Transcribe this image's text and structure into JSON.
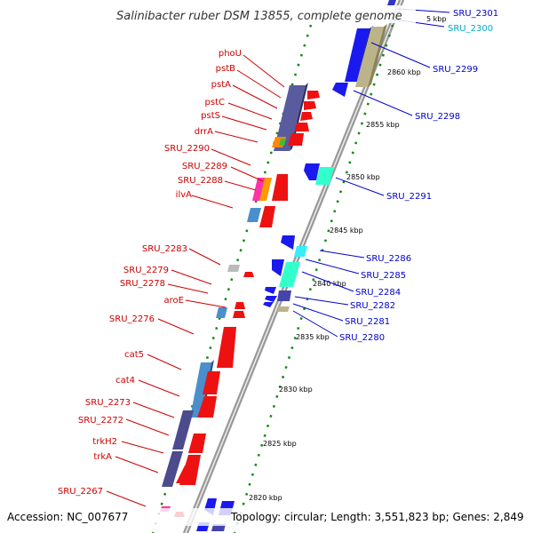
{
  "title": "Salinibacter ruber DSM 13855, complete genome",
  "footer": {
    "accession": "Accession: NC_007677",
    "topology": "Topology: circular; Length: 3,551,823 bp; Genes: 2,849"
  },
  "colors": {
    "backbone": "#888888",
    "forward_gene_label": "#cc0000",
    "reverse_gene_label": "#0000cc",
    "rna_label": "#00aacc",
    "tick_marks": "#008800"
  },
  "ticks": [
    "5 kbp",
    "2860 kbp",
    "2855 kbp",
    "2850 kbp",
    "2845 kbp",
    "2840 kbp",
    "2835 kbp",
    "2830 kbp",
    "2825 kbp",
    "2820 kbp"
  ],
  "forward_genes": [
    "phoU",
    "pstB",
    "pstA",
    "pstC",
    "pstS",
    "drrA",
    "SRU_2290",
    "SRU_2289",
    "SRU_2288",
    "ilvA",
    "SRU_2283",
    "SRU_2279",
    "SRU_2278",
    "aroE",
    "SRU_2276",
    "cat5",
    "cat4",
    "SRU_2273",
    "SRU_2272",
    "trkH2",
    "trkA",
    "SRU_2267"
  ],
  "reverse_genes": [
    "SRU_2301",
    "SRU_2300",
    "SRU_2299",
    "SRU_2298",
    "SRU_2291",
    "SRU_2286",
    "SRU_2285",
    "SRU_2284",
    "SRU_2282",
    "SRU_2281",
    "SRU_2280"
  ]
}
